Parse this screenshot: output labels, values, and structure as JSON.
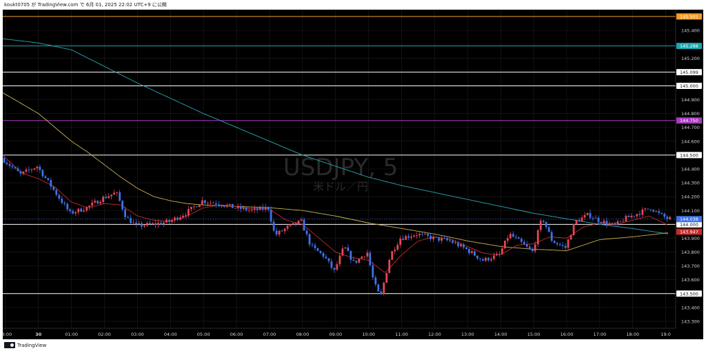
{
  "header": {
    "publish_line": "koukt0705 が TradingView.com で 6月 01, 2025 22:02 UTC+9 に公開"
  },
  "footer": {
    "brand": "TradingView"
  },
  "colors": {
    "background": "#000000",
    "grid": "#1f1f1f",
    "up": "#e84657",
    "down": "#3e72ea",
    "ma_short": "#c62a2a",
    "ma_mid": "#c9b24c",
    "ma_long": "#2aa7b5",
    "line_orange": "#f59b2c",
    "line_teal": "#19a9b3",
    "line_purple": "#a83bbf",
    "line_white": "#ffffff"
  },
  "chart_data": {
    "type": "candlestick",
    "watermark": {
      "symbol": "USDJPY, 5",
      "description": "米ドル／円"
    },
    "ylim": [
      143.25,
      145.55
    ],
    "y_ticks": [
      145.4,
      145.3,
      145.2,
      145.1,
      145.0,
      144.9,
      144.8,
      144.7,
      144.6,
      144.5,
      144.4,
      144.3,
      144.2,
      144.1,
      144.0,
      143.9,
      143.8,
      143.7,
      143.6,
      143.5,
      143.4,
      143.3
    ],
    "x_ticks": [
      "23:00",
      "30",
      "01:00",
      "02:00",
      "03:00",
      "04:00",
      "05:00",
      "06:00",
      "07:00",
      "08:00",
      "09:00",
      "10:00",
      "11:00",
      "12:00",
      "13:00",
      "14:00",
      "15:00",
      "16:00",
      "17:00",
      "18:00",
      "19:0"
    ],
    "x_tick_hours": [
      -1,
      0,
      1,
      2,
      3,
      4,
      5,
      6,
      7,
      8,
      9,
      10,
      11,
      12,
      13,
      14,
      15,
      16,
      17,
      18,
      19
    ],
    "time_range_hours": [
      -1.08,
      19.3
    ],
    "horizontal_lines": [
      {
        "price": 145.501,
        "label": "145.501",
        "color": "#f59b2c"
      },
      {
        "price": 145.288,
        "label": "145.288",
        "color": "#19a9b3"
      },
      {
        "price": 145.099,
        "label": "145.099",
        "color": "#ffffff"
      },
      {
        "price": 145.0,
        "label": "145.000",
        "color": "#ffffff"
      },
      {
        "price": 144.75,
        "label": "144.750",
        "color": "#a83bbf"
      },
      {
        "price": 144.5,
        "label": "144.500",
        "color": "#ffffff"
      },
      {
        "price": 144.0,
        "label": "144.000",
        "color": "#ffffff"
      },
      {
        "price": 143.5,
        "label": "143.500",
        "color": "#ffffff"
      }
    ],
    "last_price": {
      "price": 144.038,
      "label": "144.038",
      "color": "#3e72ea"
    },
    "ma_price": {
      "price": 143.947,
      "label": "143.947",
      "color": "#c62a2a"
    },
    "anchors": [
      [
        -1.08,
        144.48
      ],
      [
        -0.5,
        144.36
      ],
      [
        0.0,
        144.42
      ],
      [
        0.5,
        144.25
      ],
      [
        1.0,
        144.08
      ],
      [
        1.5,
        144.12
      ],
      [
        2.0,
        144.19
      ],
      [
        2.4,
        144.23
      ],
      [
        2.7,
        144.05
      ],
      [
        3.0,
        143.99
      ],
      [
        3.5,
        144.0
      ],
      [
        4.0,
        144.02
      ],
      [
        4.5,
        144.08
      ],
      [
        5.0,
        144.17
      ],
      [
        5.5,
        144.15
      ],
      [
        6.0,
        144.12
      ],
      [
        6.5,
        144.1
      ],
      [
        7.0,
        144.12
      ],
      [
        7.2,
        143.92
      ],
      [
        7.6,
        143.98
      ],
      [
        8.0,
        144.02
      ],
      [
        8.3,
        143.84
      ],
      [
        8.7,
        143.77
      ],
      [
        9.0,
        143.66
      ],
      [
        9.3,
        143.84
      ],
      [
        9.6,
        143.72
      ],
      [
        10.0,
        143.8
      ],
      [
        10.2,
        143.58
      ],
      [
        10.4,
        143.47
      ],
      [
        10.7,
        143.78
      ],
      [
        11.0,
        143.9
      ],
      [
        11.5,
        143.93
      ],
      [
        12.0,
        143.9
      ],
      [
        12.5,
        143.88
      ],
      [
        13.0,
        143.82
      ],
      [
        13.5,
        143.74
      ],
      [
        14.0,
        143.78
      ],
      [
        14.3,
        143.93
      ],
      [
        14.7,
        143.86
      ],
      [
        15.0,
        143.8
      ],
      [
        15.3,
        144.05
      ],
      [
        15.6,
        143.88
      ],
      [
        16.0,
        143.83
      ],
      [
        16.3,
        144.02
      ],
      [
        16.7,
        144.07
      ],
      [
        17.0,
        144.03
      ],
      [
        17.5,
        143.99
      ],
      [
        17.8,
        144.04
      ],
      [
        18.2,
        144.08
      ],
      [
        18.6,
        144.12
      ],
      [
        18.8,
        144.08
      ],
      [
        19.1,
        144.04
      ]
    ],
    "ma_short_path": [
      [
        -1.08,
        144.5
      ],
      [
        -0.5,
        144.37
      ],
      [
        0.0,
        144.33
      ],
      [
        0.5,
        144.27
      ],
      [
        1.0,
        144.16
      ],
      [
        1.5,
        144.12
      ],
      [
        2.0,
        144.15
      ],
      [
        2.5,
        144.14
      ],
      [
        3.0,
        144.06
      ],
      [
        3.5,
        144.03
      ],
      [
        4.0,
        144.02
      ],
      [
        4.5,
        144.06
      ],
      [
        5.0,
        144.12
      ],
      [
        5.5,
        144.14
      ],
      [
        6.0,
        144.13
      ],
      [
        6.5,
        144.11
      ],
      [
        7.0,
        144.11
      ],
      [
        7.5,
        144.03
      ],
      [
        8.0,
        144.0
      ],
      [
        8.5,
        143.9
      ],
      [
        9.0,
        143.8
      ],
      [
        9.5,
        143.76
      ],
      [
        10.0,
        143.74
      ],
      [
        10.5,
        143.65
      ],
      [
        11.0,
        143.78
      ],
      [
        11.5,
        143.88
      ],
      [
        12.0,
        143.91
      ],
      [
        12.5,
        143.89
      ],
      [
        13.0,
        143.84
      ],
      [
        13.5,
        143.79
      ],
      [
        14.0,
        143.78
      ],
      [
        14.5,
        143.85
      ],
      [
        15.0,
        143.86
      ],
      [
        15.5,
        143.91
      ],
      [
        16.0,
        143.9
      ],
      [
        16.5,
        143.98
      ],
      [
        17.0,
        144.01
      ],
      [
        17.5,
        144.0
      ],
      [
        18.0,
        144.03
      ],
      [
        18.5,
        144.06
      ],
      [
        19.1,
        143.99
      ]
    ],
    "ma_mid_path": [
      [
        -1.08,
        144.95
      ],
      [
        -0.5,
        144.87
      ],
      [
        0.0,
        144.8
      ],
      [
        0.5,
        144.7
      ],
      [
        1.0,
        144.6
      ],
      [
        1.5,
        144.52
      ],
      [
        2.0,
        144.43
      ],
      [
        2.5,
        144.34
      ],
      [
        3.0,
        144.26
      ],
      [
        3.5,
        144.2
      ],
      [
        4.0,
        144.17
      ],
      [
        4.5,
        144.15
      ],
      [
        5.0,
        144.14
      ],
      [
        6.0,
        144.13
      ],
      [
        7.0,
        144.12
      ],
      [
        8.0,
        144.1
      ],
      [
        9.0,
        144.06
      ],
      [
        10.0,
        144.01
      ],
      [
        11.0,
        143.97
      ],
      [
        12.0,
        143.93
      ],
      [
        13.0,
        143.88
      ],
      [
        14.0,
        143.84
      ],
      [
        15.0,
        143.82
      ],
      [
        16.0,
        143.81
      ],
      [
        16.5,
        143.85
      ],
      [
        17.0,
        143.89
      ],
      [
        18.0,
        143.91
      ],
      [
        19.1,
        143.94
      ]
    ],
    "ma_long_path": [
      [
        -1.08,
        145.34
      ],
      [
        0.0,
        145.31
      ],
      [
        1.0,
        145.26
      ],
      [
        2.0,
        145.14
      ],
      [
        3.0,
        145.02
      ],
      [
        4.0,
        144.91
      ],
      [
        5.0,
        144.8
      ],
      [
        6.0,
        144.7
      ],
      [
        7.0,
        144.6
      ],
      [
        8.0,
        144.5
      ],
      [
        9.0,
        144.42
      ],
      [
        10.0,
        144.34
      ],
      [
        11.0,
        144.28
      ],
      [
        12.0,
        144.23
      ],
      [
        13.0,
        144.18
      ],
      [
        14.0,
        144.13
      ],
      [
        15.0,
        144.08
      ],
      [
        16.0,
        144.04
      ],
      [
        17.0,
        144.0
      ],
      [
        18.0,
        143.97
      ],
      [
        19.1,
        143.93
      ]
    ]
  }
}
